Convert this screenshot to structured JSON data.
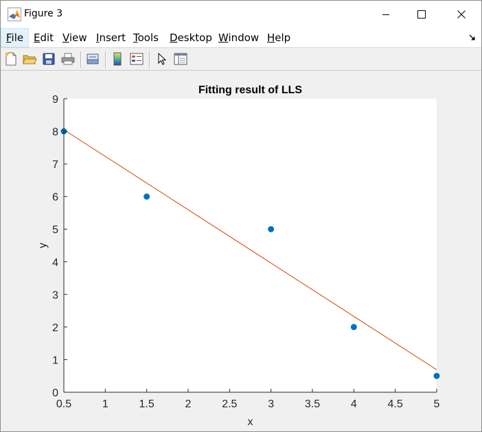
{
  "window": {
    "title": "Figure 3"
  },
  "menubar": {
    "items": [
      {
        "mnemonic": "F",
        "rest": "ile",
        "active": true
      },
      {
        "mnemonic": "E",
        "rest": "dit"
      },
      {
        "mnemonic": "V",
        "rest": "iew"
      },
      {
        "mnemonic": "I",
        "rest": "nsert"
      },
      {
        "mnemonic": "T",
        "rest": "ools"
      },
      {
        "mnemonic": "D",
        "rest": "esktop"
      },
      {
        "mnemonic": "W",
        "rest": "indow"
      },
      {
        "mnemonic": "H",
        "rest": "elp"
      }
    ]
  },
  "toolbar": {
    "icons": [
      "new-figure-icon",
      "open-file-icon",
      "save-icon",
      "print-icon",
      "link-plot-icon",
      "colorbar-icon",
      "legend-icon",
      "edit-plot-pointer-icon",
      "property-inspector-icon"
    ]
  },
  "colors": {
    "marker": "#0072BD",
    "fit_line": "#D95319",
    "axes_background": "#ffffff",
    "figure_background": "#f0f0f0"
  },
  "chart_data": {
    "type": "scatter",
    "title": "Fitting result of LLS",
    "xlabel": "x",
    "ylabel": "y",
    "xlim": [
      0.5,
      5
    ],
    "ylim": [
      0,
      9
    ],
    "xticks": [
      "0.5",
      "1",
      "1.5",
      "2",
      "2.5",
      "3",
      "3.5",
      "4",
      "4.5",
      "5"
    ],
    "yticks": [
      "0",
      "1",
      "2",
      "3",
      "4",
      "5",
      "6",
      "7",
      "8",
      "9"
    ],
    "grid": false,
    "series": [
      {
        "type": "scatter",
        "x": [
          0.5,
          1.5,
          3,
          4,
          5
        ],
        "y": [
          8,
          6,
          5,
          2,
          0.5
        ]
      },
      {
        "type": "line",
        "x": [
          0.5,
          5
        ],
        "y": [
          8.05,
          0.69
        ]
      }
    ]
  }
}
